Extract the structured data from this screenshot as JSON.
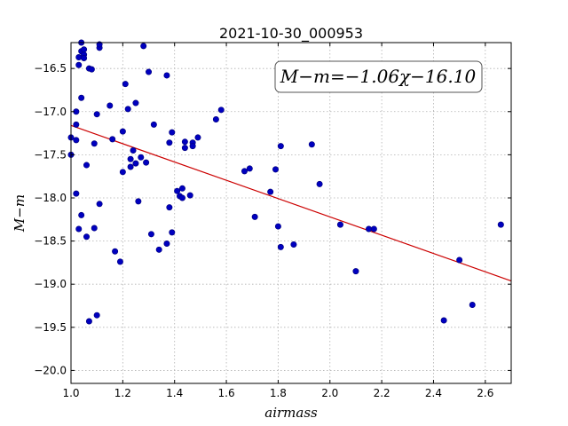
{
  "chart_data": {
    "type": "scatter",
    "title": "2021-10-30_000953",
    "xlabel": "airmass",
    "ylabel": "M−m",
    "xlim": [
      1.0,
      2.7
    ],
    "ylim": [
      -16.2,
      -20.15
    ],
    "y_inverted": true,
    "grid": true,
    "xticks": [
      "1.0",
      "1.2",
      "1.4",
      "1.6",
      "1.8",
      "2.0",
      "2.2",
      "2.4",
      "2.6"
    ],
    "xtick_values": [
      1.0,
      1.2,
      1.4,
      1.6,
      1.8,
      2.0,
      2.2,
      2.4,
      2.6
    ],
    "yticks": [
      "−16.5",
      "−17.0",
      "−17.5",
      "−18.0",
      "−18.5",
      "−19.0",
      "−19.5",
      "−20.0"
    ],
    "ytick_values": [
      -16.5,
      -17.0,
      -17.5,
      -18.0,
      -18.5,
      -19.0,
      -19.5,
      -20.0
    ],
    "annotation": "M−m=−1.06χ−16.10",
    "point_color": "#0000bf",
    "line_color": "#cc0000",
    "fit": {
      "slope": -1.06,
      "intercept": -16.1
    },
    "points": [
      [
        1.0,
        -17.3
      ],
      [
        1.0,
        -17.5
      ],
      [
        1.02,
        -17.15
      ],
      [
        1.02,
        -17.0
      ],
      [
        1.02,
        -17.33
      ],
      [
        1.02,
        -17.95
      ],
      [
        1.03,
        -18.36
      ],
      [
        1.03,
        -16.37
      ],
      [
        1.03,
        -16.46
      ],
      [
        1.04,
        -16.3
      ],
      [
        1.04,
        -16.2
      ],
      [
        1.04,
        -16.84
      ],
      [
        1.04,
        -18.2
      ],
      [
        1.05,
        -16.34
      ],
      [
        1.05,
        -16.38
      ],
      [
        1.05,
        -16.28
      ],
      [
        1.06,
        -17.62
      ],
      [
        1.06,
        -18.45
      ],
      [
        1.07,
        -16.5
      ],
      [
        1.07,
        -19.43
      ],
      [
        1.08,
        -16.51
      ],
      [
        1.09,
        -18.35
      ],
      [
        1.09,
        -17.37
      ],
      [
        1.1,
        -19.36
      ],
      [
        1.1,
        -17.03
      ],
      [
        1.11,
        -18.07
      ],
      [
        1.11,
        -16.26
      ],
      [
        1.11,
        -16.22
      ],
      [
        1.15,
        -16.93
      ],
      [
        1.16,
        -17.32
      ],
      [
        1.17,
        -18.62
      ],
      [
        1.19,
        -18.74
      ],
      [
        1.2,
        -17.23
      ],
      [
        1.2,
        -17.7
      ],
      [
        1.21,
        -16.68
      ],
      [
        1.22,
        -16.97
      ],
      [
        1.23,
        -17.55
      ],
      [
        1.23,
        -17.64
      ],
      [
        1.24,
        -17.45
      ],
      [
        1.25,
        -17.6
      ],
      [
        1.25,
        -16.9
      ],
      [
        1.26,
        -18.04
      ],
      [
        1.27,
        -17.53
      ],
      [
        1.28,
        -16.24
      ],
      [
        1.29,
        -17.59
      ],
      [
        1.3,
        -16.54
      ],
      [
        1.31,
        -18.42
      ],
      [
        1.32,
        -17.15
      ],
      [
        1.34,
        -18.6
      ],
      [
        1.37,
        -18.53
      ],
      [
        1.37,
        -16.58
      ],
      [
        1.38,
        -17.36
      ],
      [
        1.38,
        -18.11
      ],
      [
        1.39,
        -18.4
      ],
      [
        1.39,
        -17.24
      ],
      [
        1.41,
        -17.92
      ],
      [
        1.42,
        -17.98
      ],
      [
        1.43,
        -17.89
      ],
      [
        1.43,
        -18.0
      ],
      [
        1.44,
        -17.35
      ],
      [
        1.44,
        -17.42
      ],
      [
        1.46,
        -17.97
      ],
      [
        1.47,
        -17.36
      ],
      [
        1.47,
        -17.4
      ],
      [
        1.49,
        -17.3
      ],
      [
        1.56,
        -17.09
      ],
      [
        1.58,
        -16.98
      ],
      [
        1.67,
        -17.69
      ],
      [
        1.69,
        -17.66
      ],
      [
        1.71,
        -18.22
      ],
      [
        1.77,
        -17.93
      ],
      [
        1.79,
        -17.67
      ],
      [
        1.8,
        -18.33
      ],
      [
        1.81,
        -17.4
      ],
      [
        1.81,
        -18.57
      ],
      [
        1.86,
        -18.54
      ],
      [
        1.93,
        -17.38
      ],
      [
        1.96,
        -17.84
      ],
      [
        2.04,
        -18.31
      ],
      [
        2.1,
        -18.85
      ],
      [
        2.15,
        -18.36
      ],
      [
        2.17,
        -18.36
      ],
      [
        2.44,
        -19.42
      ],
      [
        2.5,
        -18.72
      ],
      [
        2.55,
        -19.24
      ],
      [
        2.66,
        -18.31
      ]
    ]
  }
}
